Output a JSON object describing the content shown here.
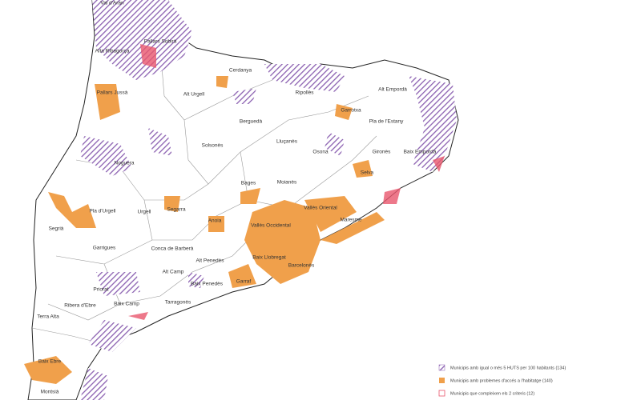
{
  "labels": [
    "Val d'Aran",
    "Pallars Sobirà",
    "Alta Ribagorça",
    "Pallars Jussà",
    "Alt Urgell",
    "Cerdanya",
    "Ripollès",
    "Garrotxa",
    "Alt Empordà",
    "Pla de l'Estany",
    "Berguedà",
    "Solsonès",
    "Lluçanès",
    "Osona",
    "Gironès",
    "Baix Empordà",
    "Noguera",
    "Selva",
    "Bages",
    "Moianès",
    "Segrià",
    "Pla d'Urgell",
    "Urgell",
    "Segarra",
    "Anoia",
    "Vallès Oriental",
    "Maresme",
    "Vallès Occidental",
    "Garrigues",
    "Conca de Barberà",
    "Baix Llobregat",
    "Barcelonès",
    "Alt Penedès",
    "Alt Camp",
    "Priorat",
    "Baix Penedès",
    "Garraf",
    "Ribera d'Ebre",
    "Baix Camp",
    "Tarragonès",
    "Terra Alta",
    "Baix Ebre",
    "Montsià"
  ],
  "legend": {
    "items": [
      "Municipis amb igual o més 5 HUTS per 100 habitants (134)",
      "Municipis amb problemes d'accés a l'habitatge (140)",
      "Municipis que compleixen els 2 criteris (12)"
    ]
  }
}
